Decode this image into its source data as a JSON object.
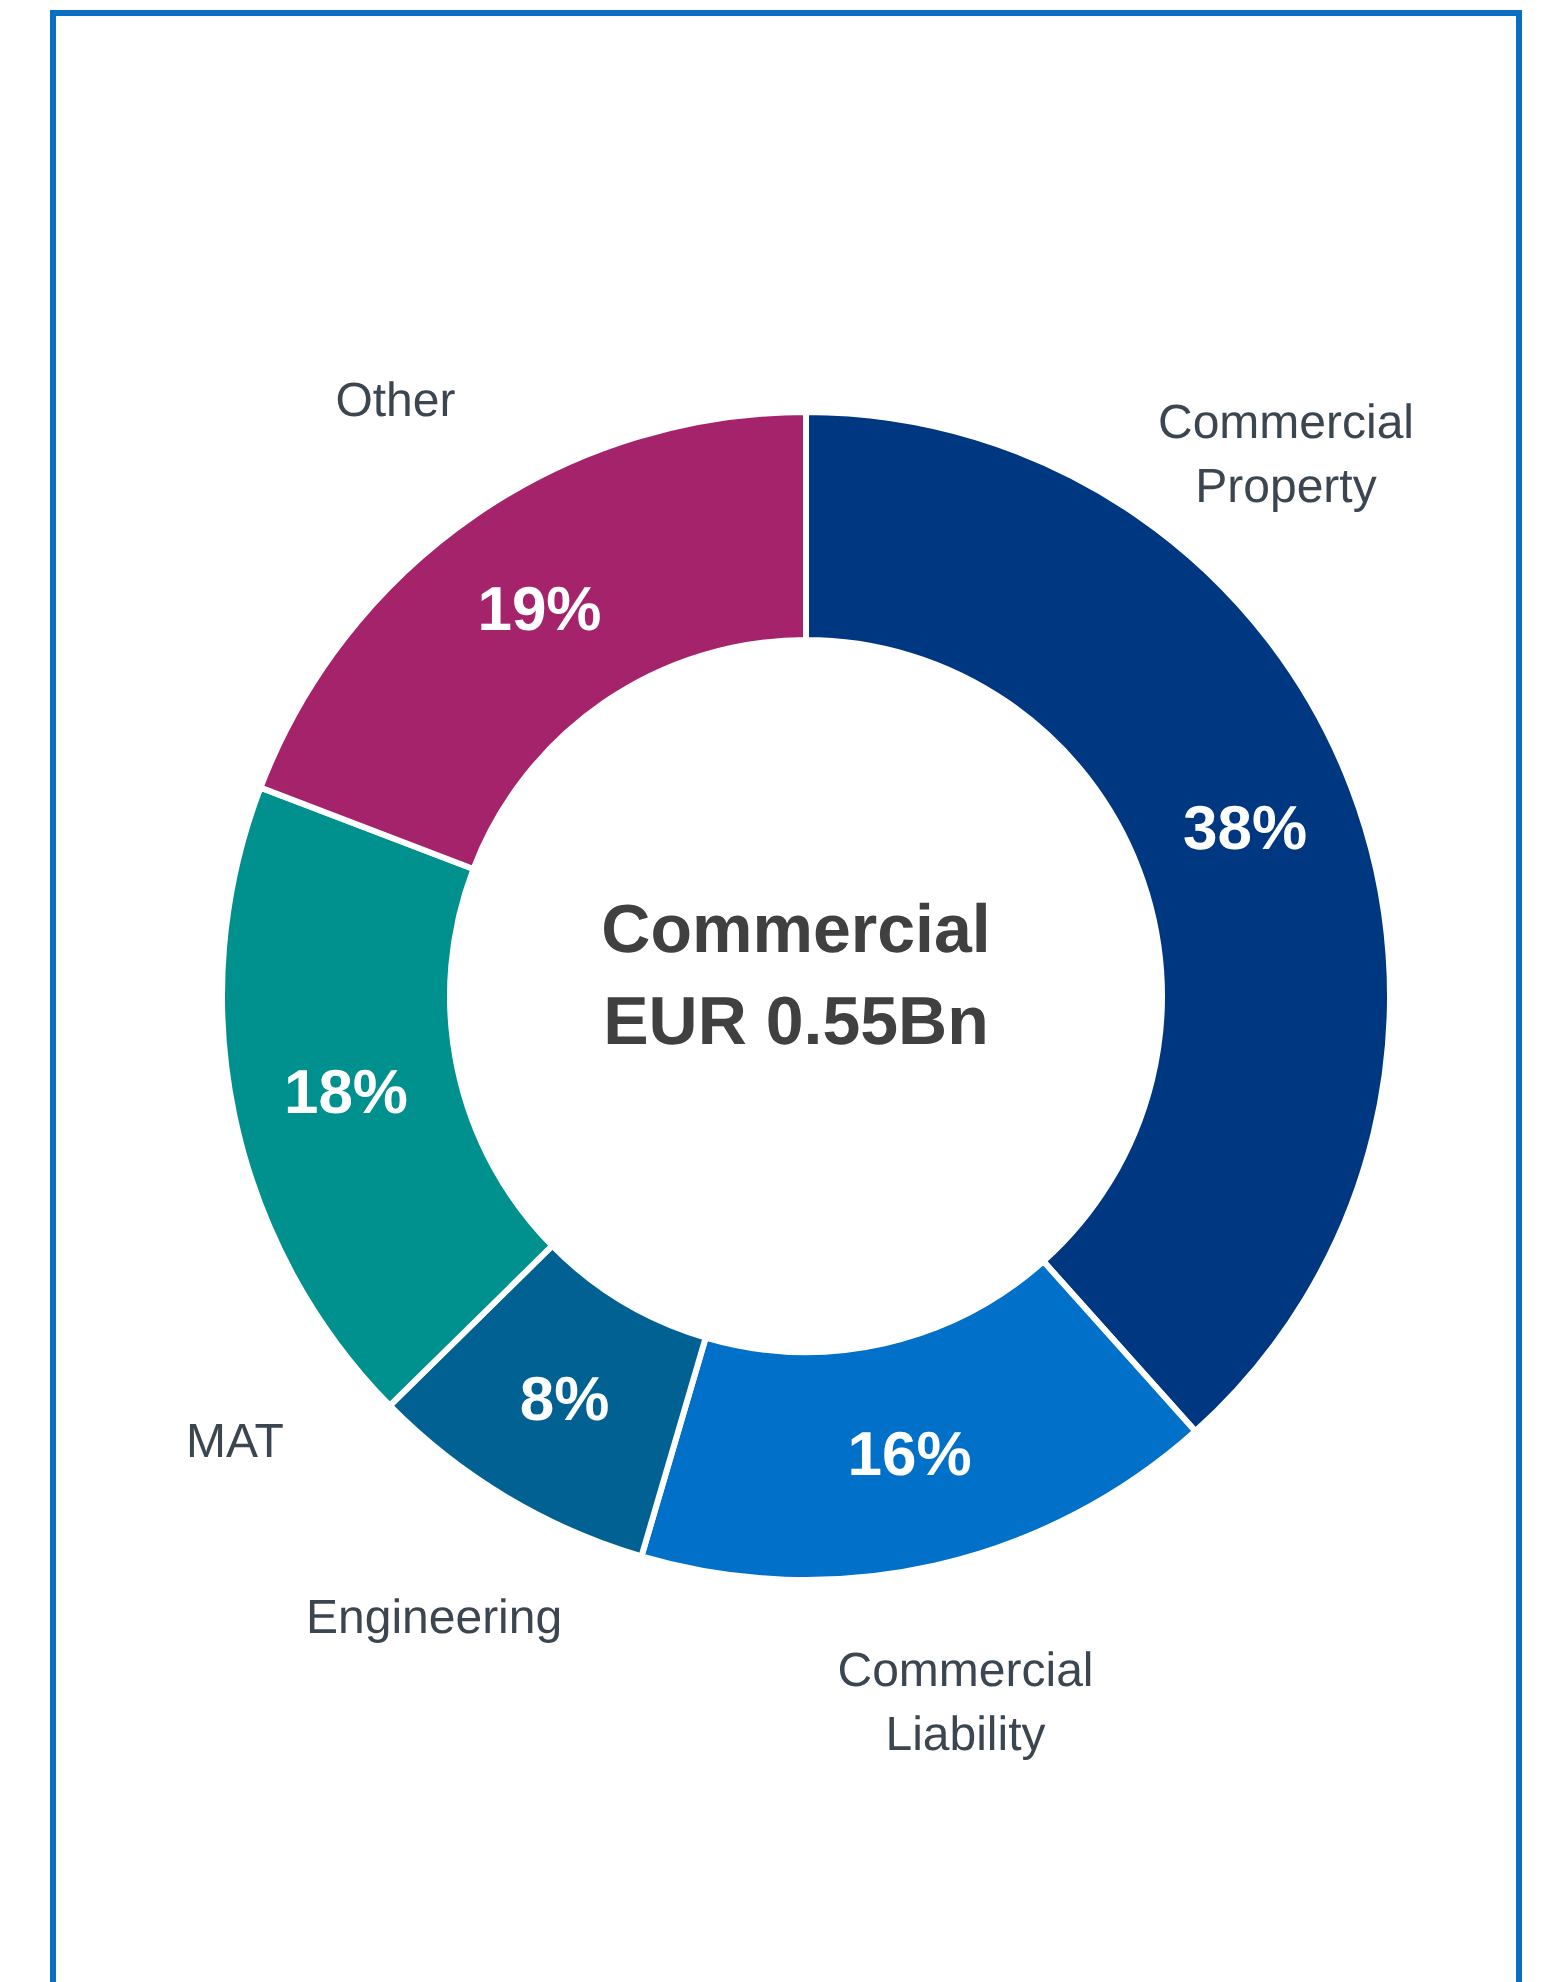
{
  "chart_data": {
    "type": "donut",
    "title": "Commercial",
    "subtitle": "EUR 0.55Bn",
    "categories": [
      "Commercial Property",
      "Commercial Liability",
      "Engineering",
      "MAT",
      "Other"
    ],
    "values": [
      38,
      16,
      8,
      18,
      19
    ],
    "colors": [
      "#003781",
      "#0070c9",
      "#006192",
      "#00908d",
      "#a5236b"
    ],
    "value_labels": [
      "38%",
      "16%",
      "8%",
      "18%",
      "19%"
    ]
  }
}
